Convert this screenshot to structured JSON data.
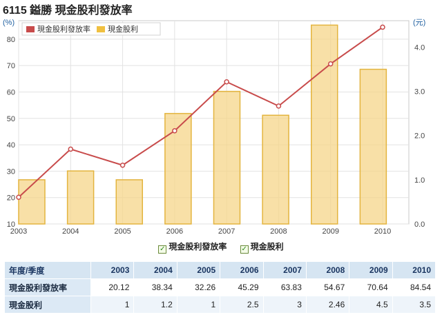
{
  "title": "6115 鎰勝 現金股利發放率",
  "chart_data": {
    "type": "bar+line",
    "categories": [
      "2003",
      "2004",
      "2005",
      "2006",
      "2007",
      "2008",
      "2009",
      "2010"
    ],
    "series": [
      {
        "name": "現金股利發放率",
        "type": "line",
        "axis": "left",
        "color": "#c84b4b",
        "values": [
          20.12,
          38.34,
          32.26,
          45.29,
          63.83,
          54.67,
          70.64,
          84.54
        ]
      },
      {
        "name": "現金股利",
        "type": "bar",
        "axis": "right",
        "color": "#f5d68a",
        "values": [
          1,
          1.2,
          1,
          2.5,
          3,
          2.46,
          4.5,
          3.5
        ]
      }
    ],
    "left_axis": {
      "unit": "(%)",
      "min": 10,
      "max": 87,
      "ticks": [
        10,
        20,
        30,
        40,
        50,
        60,
        70,
        80
      ]
    },
    "right_axis": {
      "unit": "(元)",
      "min": 0,
      "max": 4.6,
      "ticks": [
        "0.0",
        "1.0",
        "2.0",
        "3.0",
        "4.0"
      ]
    },
    "grid": true,
    "legend_placement": "top-left"
  },
  "table": {
    "header": [
      "年度/季度",
      "2003",
      "2004",
      "2005",
      "2006",
      "2007",
      "2008",
      "2009",
      "2010"
    ],
    "rows": [
      {
        "label": "現金股利發放率",
        "values": [
          "20.12",
          "38.34",
          "32.26",
          "45.29",
          "63.83",
          "54.67",
          "70.64",
          "84.54"
        ]
      },
      {
        "label": "現金股利",
        "values": [
          "1",
          "1.2",
          "1",
          "2.5",
          "3",
          "2.46",
          "4.5",
          "3.5"
        ]
      }
    ]
  }
}
